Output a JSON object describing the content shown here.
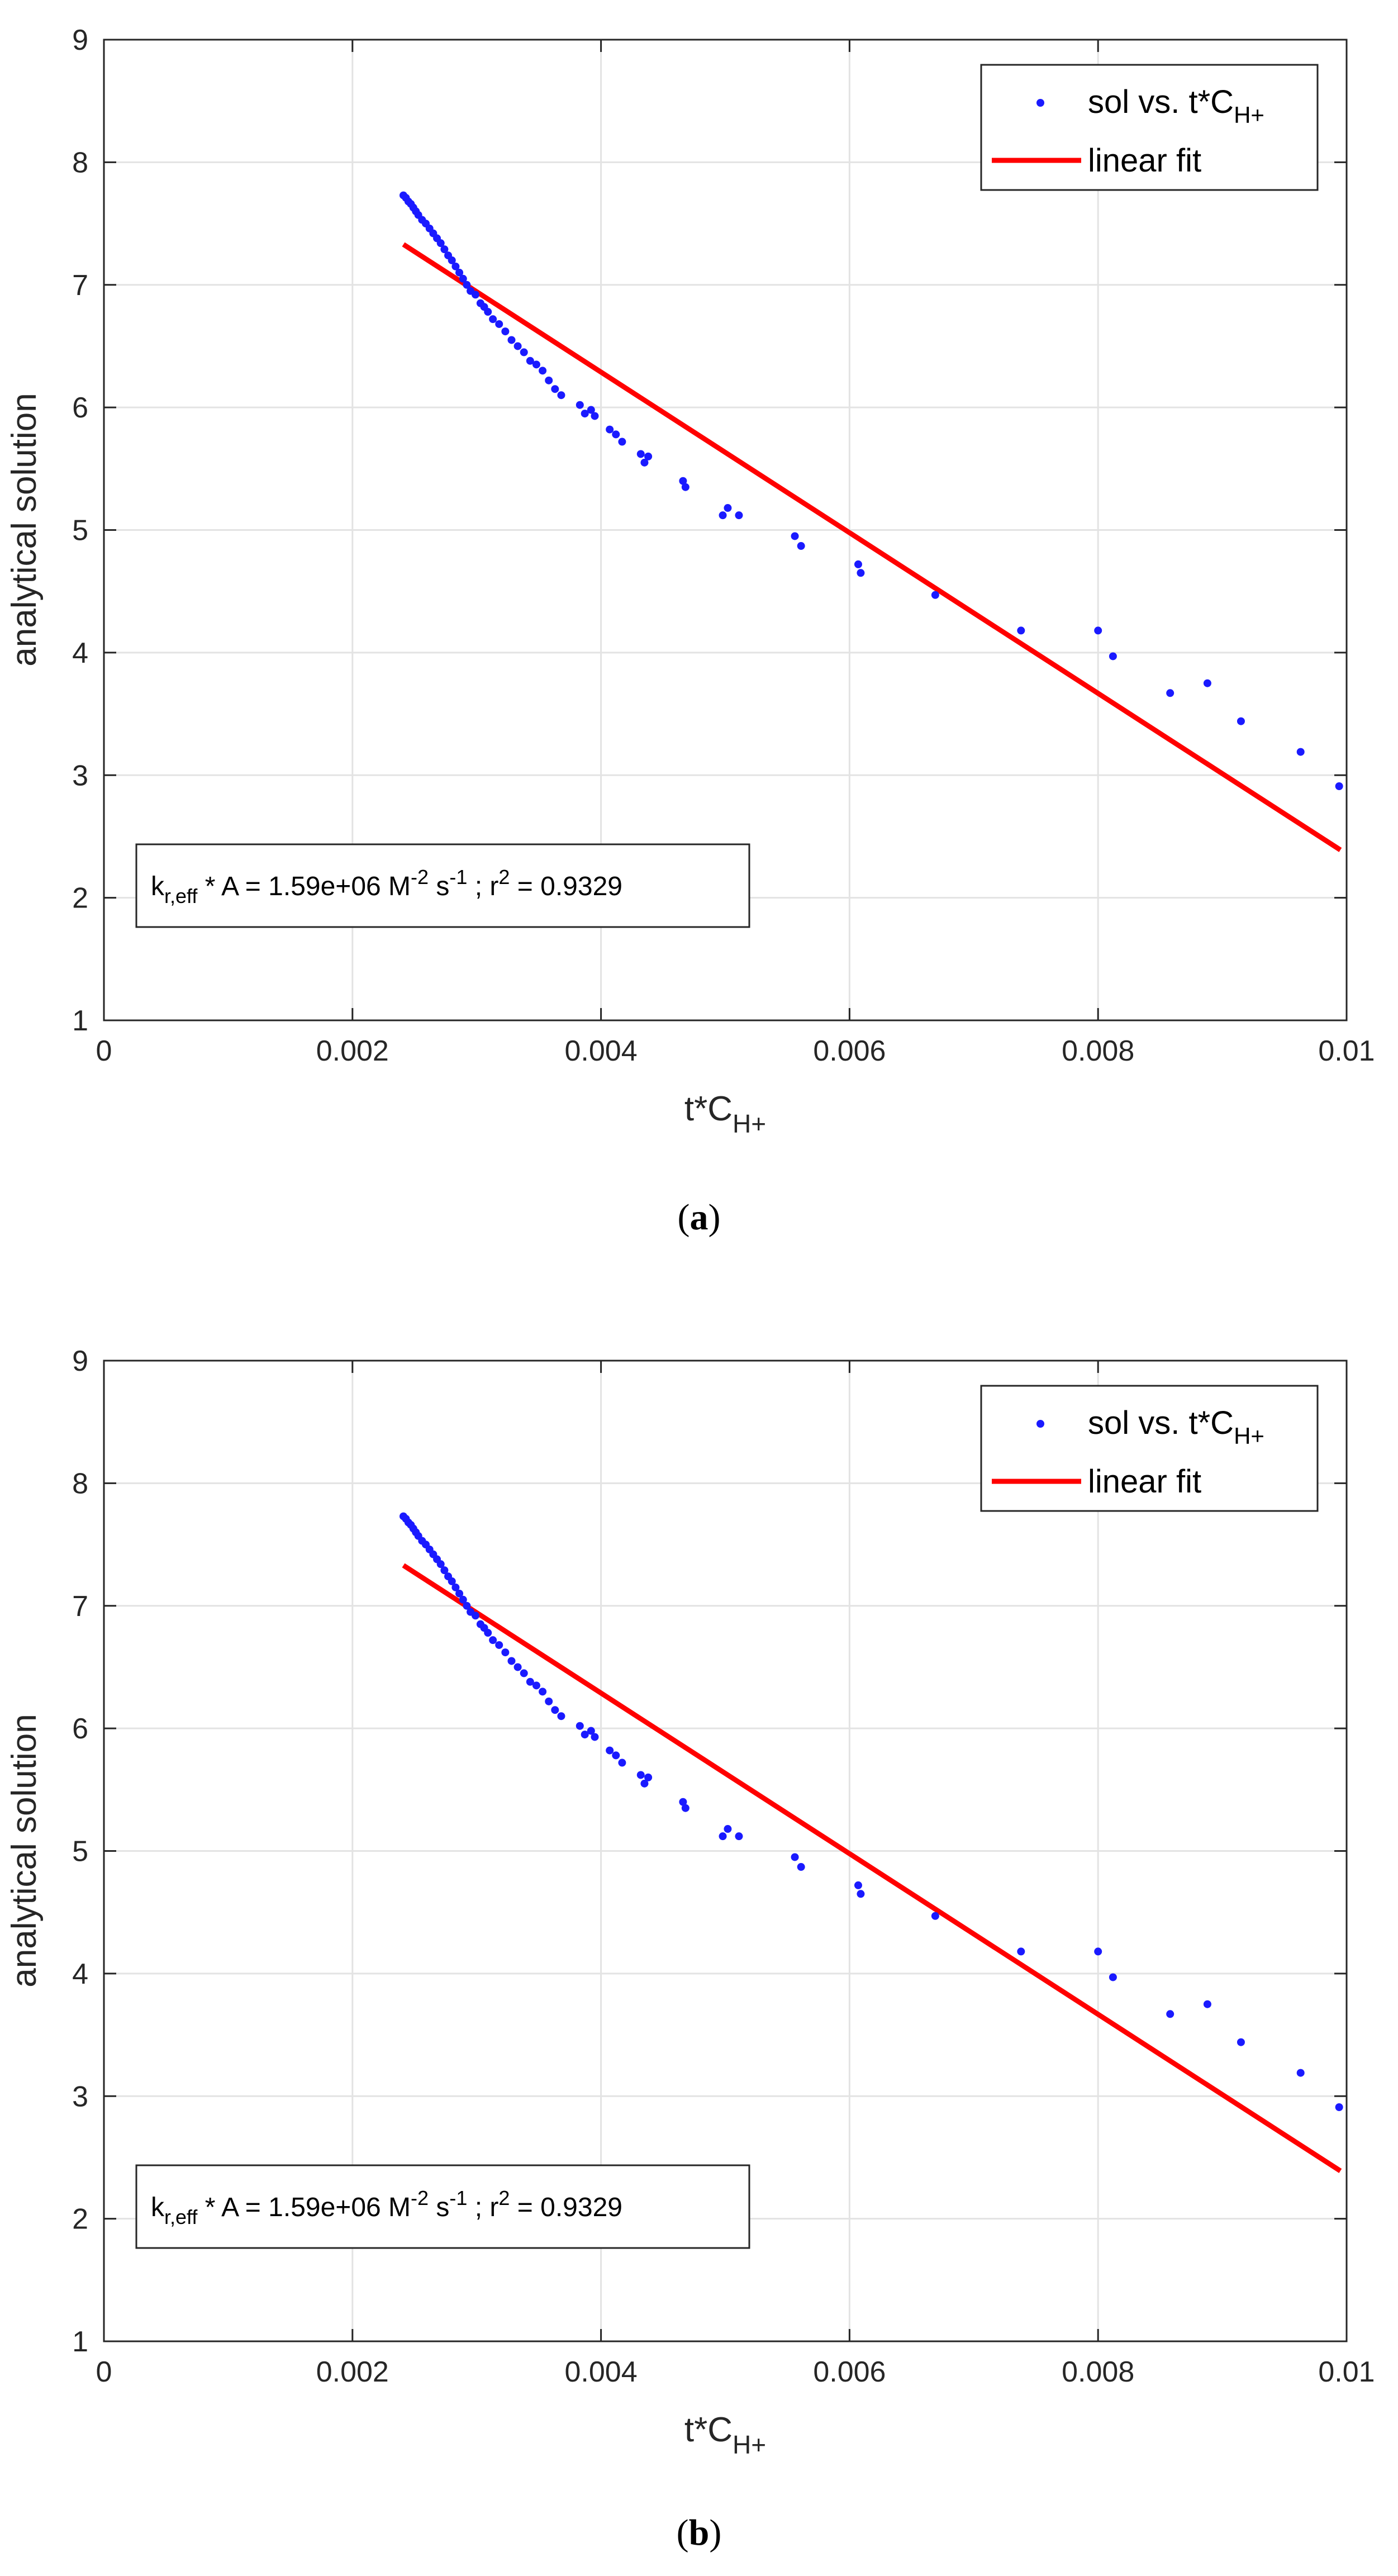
{
  "chart_data": [
    {
      "type": "scatter",
      "panel": "a",
      "caption": {
        "open": "(",
        "letter": "a",
        "close": ")"
      },
      "xlabel": {
        "base": "t*C",
        "sub": "H+"
      },
      "ylabel": "analytical solution",
      "xlim": [
        0,
        0.01
      ],
      "ylim": [
        1,
        9
      ],
      "xticks": [
        0,
        0.002,
        0.004,
        0.006,
        0.008,
        0.01
      ],
      "xtick_labels": [
        "0",
        "0.002",
        "0.004",
        "0.006",
        "0.008",
        "0.01"
      ],
      "yticks": [
        1,
        2,
        3,
        4,
        5,
        6,
        7,
        8,
        9
      ],
      "ytick_labels": [
        "1",
        "2",
        "3",
        "4",
        "5",
        "6",
        "7",
        "8",
        "9"
      ],
      "grid": true,
      "legend_position": "top-right",
      "legend": [
        {
          "marker": "dot",
          "label_base": "sol vs. t*C",
          "label_sub": "H+"
        },
        {
          "marker": "line",
          "label_base": "linear fit",
          "label_sub": ""
        }
      ],
      "annotation": {
        "k": "k",
        "k_sub": "r,eff",
        "mid": " * A = 1.59e+06 M",
        "exp1": "-2",
        "s": " s",
        "exp2": "-1",
        "r_part": " ; r",
        "exp3": "2",
        "tail": " = 0.9329"
      },
      "series": [
        {
          "name": "sol vs. t*C_H+",
          "kind": "scatter",
          "color": "#1a1aff",
          "x": [
            0.00241,
            0.00243,
            0.00245,
            0.00247,
            0.00249,
            0.00251,
            0.00253,
            0.00256,
            0.00259,
            0.00262,
            0.00265,
            0.00268,
            0.00271,
            0.00274,
            0.00277,
            0.0028,
            0.00283,
            0.00286,
            0.00289,
            0.00292,
            0.00295,
            0.00299,
            0.00303,
            0.00306,
            0.00309,
            0.00313,
            0.00318,
            0.00323,
            0.00328,
            0.00333,
            0.00338,
            0.00343,
            0.00348,
            0.00353,
            0.00358,
            0.00363,
            0.00368,
            0.00383,
            0.00387,
            0.00392,
            0.00395,
            0.00407,
            0.00412,
            0.00417,
            0.00432,
            0.00435,
            0.00438,
            0.00466,
            0.00468,
            0.00498,
            0.00502,
            0.00511,
            0.00556,
            0.00561,
            0.00607,
            0.00609,
            0.00669,
            0.00738,
            0.008,
            0.00812,
            0.00858,
            0.00888,
            0.00915,
            0.00963,
            0.00994
          ],
          "y": [
            7.73,
            7.71,
            7.68,
            7.66,
            7.63,
            7.6,
            7.57,
            7.53,
            7.5,
            7.46,
            7.42,
            7.38,
            7.34,
            7.29,
            7.24,
            7.2,
            7.15,
            7.1,
            7.05,
            7.0,
            6.95,
            6.92,
            6.85,
            6.82,
            6.78,
            6.72,
            6.68,
            6.62,
            6.55,
            6.5,
            6.45,
            6.38,
            6.35,
            6.3,
            6.22,
            6.15,
            6.1,
            6.02,
            5.95,
            5.98,
            5.93,
            5.82,
            5.78,
            5.72,
            5.62,
            5.55,
            5.6,
            5.4,
            5.35,
            5.12,
            5.18,
            5.12,
            4.95,
            4.87,
            4.72,
            4.65,
            4.47,
            4.18,
            4.18,
            3.97,
            3.67,
            3.75,
            3.44,
            3.19,
            2.91
          ]
        },
        {
          "name": "linear fit",
          "kind": "line",
          "color": "#ff0000",
          "x": [
            0.00241,
            0.00995
          ],
          "y": [
            7.33,
            2.39
          ]
        }
      ]
    },
    {
      "type": "scatter",
      "panel": "b",
      "caption": {
        "open": "(",
        "letter": "b",
        "close": ")"
      },
      "xlabel": {
        "base": "t*C",
        "sub": "H+"
      },
      "ylabel": "analytical solution",
      "xlim": [
        0,
        0.01
      ],
      "ylim": [
        1,
        9
      ],
      "xticks": [
        0,
        0.002,
        0.004,
        0.006,
        0.008,
        0.01
      ],
      "xtick_labels": [
        "0",
        "0.002",
        "0.004",
        "0.006",
        "0.008",
        "0.01"
      ],
      "yticks": [
        1,
        2,
        3,
        4,
        5,
        6,
        7,
        8,
        9
      ],
      "ytick_labels": [
        "1",
        "2",
        "3",
        "4",
        "5",
        "6",
        "7",
        "8",
        "9"
      ],
      "grid": true,
      "legend_position": "top-right",
      "legend": [
        {
          "marker": "dot",
          "label_base": "sol vs. t*C",
          "label_sub": "H+"
        },
        {
          "marker": "line",
          "label_base": "linear fit",
          "label_sub": ""
        }
      ],
      "annotation": {
        "k": "k",
        "k_sub": "r,eff",
        "mid": " * A = 1.59e+06 M",
        "exp1": "-2",
        "s": " s",
        "exp2": "-1",
        "r_part": " ; r",
        "exp3": "2",
        "tail": " = 0.9329"
      },
      "series": [
        {
          "name": "sol vs. t*C_H+",
          "kind": "scatter",
          "color": "#1a1aff",
          "x": [
            0.00241,
            0.00243,
            0.00245,
            0.00247,
            0.00249,
            0.00251,
            0.00253,
            0.00256,
            0.00259,
            0.00262,
            0.00265,
            0.00268,
            0.00271,
            0.00274,
            0.00277,
            0.0028,
            0.00283,
            0.00286,
            0.00289,
            0.00292,
            0.00295,
            0.00299,
            0.00303,
            0.00306,
            0.00309,
            0.00313,
            0.00318,
            0.00323,
            0.00328,
            0.00333,
            0.00338,
            0.00343,
            0.00348,
            0.00353,
            0.00358,
            0.00363,
            0.00368,
            0.00383,
            0.00387,
            0.00392,
            0.00395,
            0.00407,
            0.00412,
            0.00417,
            0.00432,
            0.00435,
            0.00438,
            0.00466,
            0.00468,
            0.00498,
            0.00502,
            0.00511,
            0.00556,
            0.00561,
            0.00607,
            0.00609,
            0.00669,
            0.00738,
            0.008,
            0.00812,
            0.00858,
            0.00888,
            0.00915,
            0.00963,
            0.00994
          ],
          "y": [
            7.73,
            7.71,
            7.68,
            7.66,
            7.63,
            7.6,
            7.57,
            7.53,
            7.5,
            7.46,
            7.42,
            7.38,
            7.34,
            7.29,
            7.24,
            7.2,
            7.15,
            7.1,
            7.05,
            7.0,
            6.95,
            6.92,
            6.85,
            6.82,
            6.78,
            6.72,
            6.68,
            6.62,
            6.55,
            6.5,
            6.45,
            6.38,
            6.35,
            6.3,
            6.22,
            6.15,
            6.1,
            6.02,
            5.95,
            5.98,
            5.93,
            5.82,
            5.78,
            5.72,
            5.62,
            5.55,
            5.6,
            5.4,
            5.35,
            5.12,
            5.18,
            5.12,
            4.95,
            4.87,
            4.72,
            4.65,
            4.47,
            4.18,
            4.18,
            3.97,
            3.67,
            3.75,
            3.44,
            3.19,
            2.91
          ]
        },
        {
          "name": "linear fit",
          "kind": "line",
          "color": "#ff0000",
          "x": [
            0.00241,
            0.00995
          ],
          "y": [
            7.33,
            2.39
          ]
        }
      ]
    }
  ]
}
